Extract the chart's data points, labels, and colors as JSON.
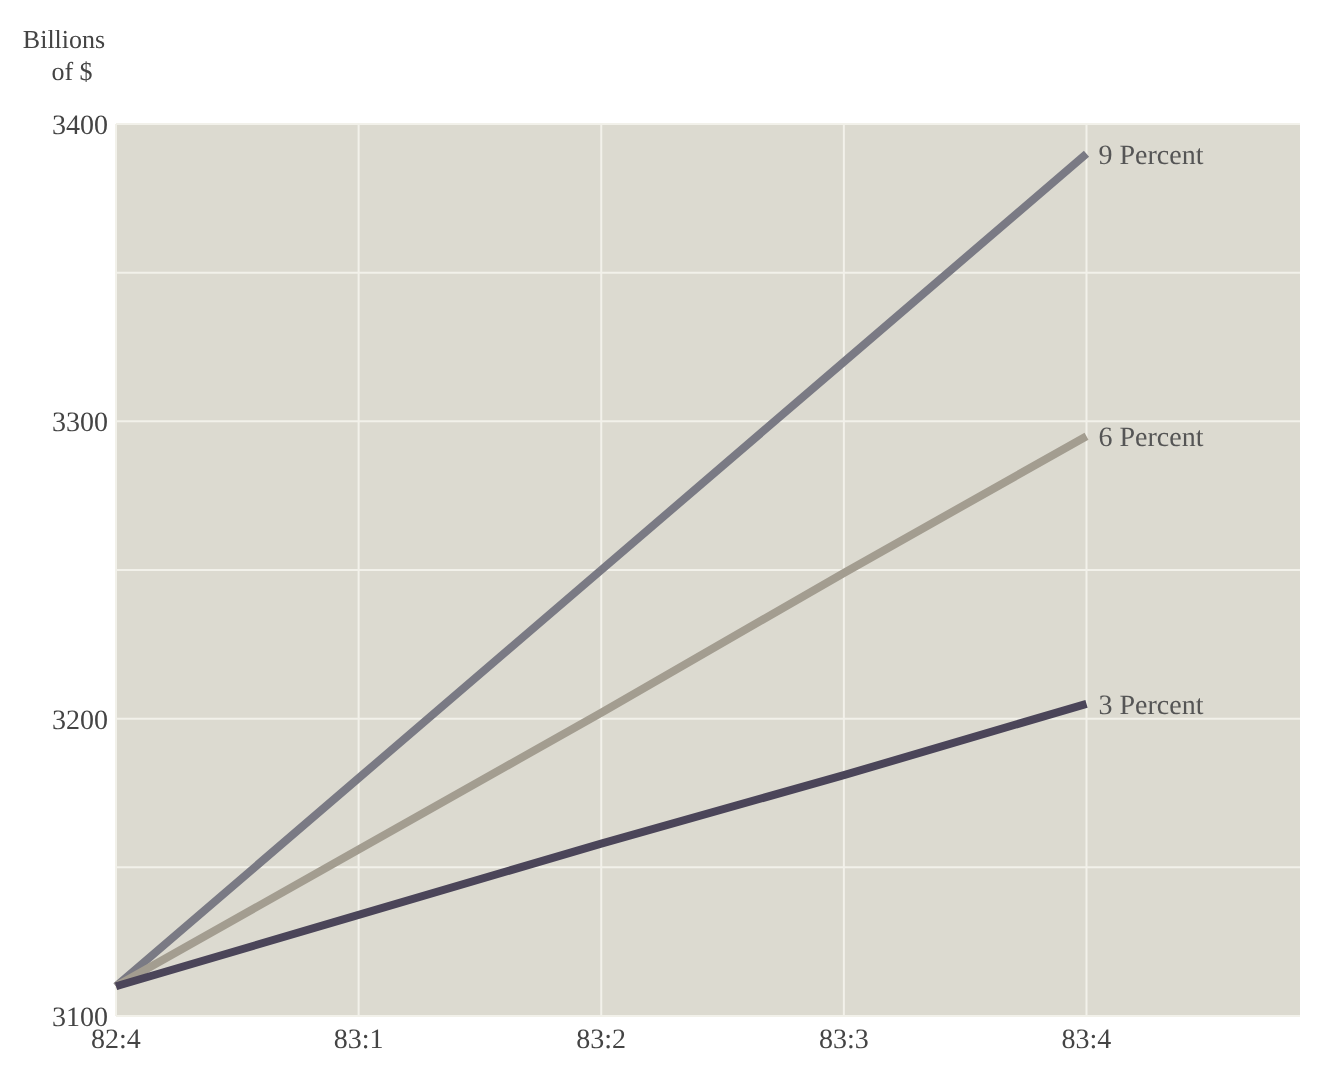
{
  "chart_data": {
    "type": "line",
    "ylabel": "Billions of $",
    "categories": [
      "82:4",
      "83:1",
      "83:2",
      "83:3",
      "83:4"
    ],
    "ylim": [
      3100,
      3400
    ],
    "yticks": [
      3100,
      {
        "value": 3150,
        "label": null
      },
      3200,
      {
        "value": 3250,
        "label": null
      },
      3300,
      {
        "value": 3350,
        "label": null
      },
      3400
    ],
    "grid": true,
    "series": [
      {
        "name": "9 Percent",
        "color": "#7a7a84",
        "values": [
          3110,
          3180,
          3250,
          3320,
          3390
        ]
      },
      {
        "name": "6 Percent",
        "color": "#a39d90",
        "values": [
          3110,
          3156,
          3202,
          3249,
          3295
        ]
      },
      {
        "name": "3 Percent",
        "color": "#4b4559",
        "values": [
          3110,
          3134,
          3158,
          3181,
          3205
        ]
      }
    ]
  }
}
